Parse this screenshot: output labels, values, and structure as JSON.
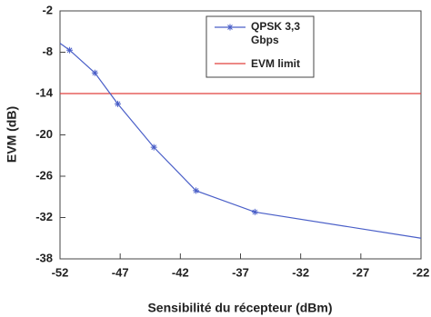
{
  "chart_data": {
    "type": "line",
    "x_label": "Sensibilité du récepteur (dBm)",
    "y_label": "EVM (dB)",
    "xlim": [
      -52,
      -22
    ],
    "xticks": [
      -52,
      -47,
      -42,
      -37,
      -32,
      -27,
      -22
    ],
    "ylim": [
      -38,
      -2
    ],
    "yticks": [
      -2,
      -8,
      -14,
      -20,
      -26,
      -32,
      -38
    ],
    "x": [
      -52,
      -51.2,
      -49.1,
      -47.2,
      -44.2,
      -40.7,
      -35.8,
      -22
    ],
    "series": [
      {
        "name": "QPSK 3,3 Gbps",
        "color": "#4a5fc8",
        "values": [
          -6.7,
          -7.7,
          -11.0,
          -15.5,
          -21.8,
          -28.1,
          -31.2,
          -35.0
        ]
      }
    ],
    "limit": {
      "name": "EVM limit",
      "value": -14,
      "color": "#e0413f"
    }
  }
}
